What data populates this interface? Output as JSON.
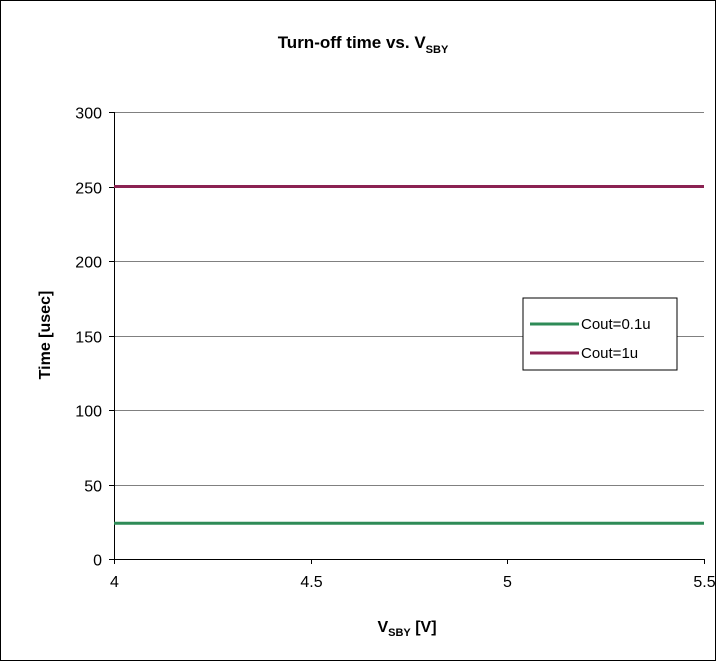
{
  "chart_data": {
    "type": "line",
    "title": {
      "main": "Turn-off time vs. V",
      "sub": "SBY"
    },
    "xlabel": {
      "main": "V",
      "sub": "SBY",
      "rest": " [V]"
    },
    "ylabel": "Time [usec]",
    "xlim": [
      4,
      5.5
    ],
    "ylim": [
      0,
      300
    ],
    "xticks": [
      4,
      4.5,
      5,
      5.5
    ],
    "xtick_labels": [
      "4",
      "4.5",
      "5",
      "5.5"
    ],
    "yticks": [
      0,
      50,
      100,
      150,
      200,
      250,
      300
    ],
    "ytick_labels": [
      "0",
      "50",
      "100",
      "150",
      "200",
      "250",
      "300"
    ],
    "grid": "horizontal",
    "legend_position": "right",
    "series": [
      {
        "name": "Cout=0.1u",
        "color": "#2e8b57",
        "x": [
          4,
          4.5,
          5,
          5.5
        ],
        "y": [
          24,
          24,
          24,
          24
        ]
      },
      {
        "name": "Cout=1u",
        "color": "#8b2252",
        "x": [
          4,
          4.5,
          5,
          5.5
        ],
        "y": [
          250,
          250,
          250,
          250
        ]
      }
    ]
  }
}
